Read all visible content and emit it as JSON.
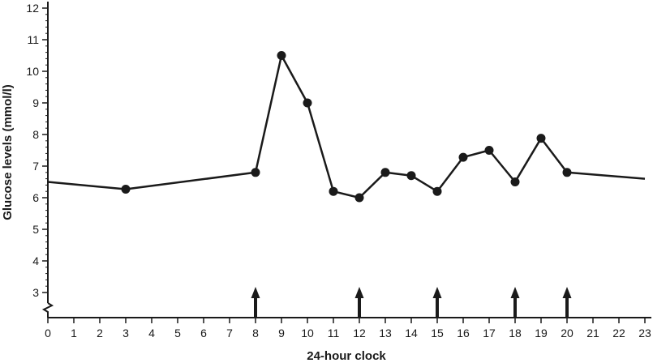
{
  "chart_data": {
    "type": "line",
    "xlabel": "24-hour clock",
    "ylabel": "Glucose levels (mmol/l)",
    "xlim": [
      0,
      23
    ],
    "ylim": [
      2.3,
      12.2
    ],
    "x_ticks": [
      0,
      1,
      2,
      3,
      4,
      5,
      6,
      7,
      8,
      9,
      10,
      11,
      12,
      13,
      14,
      15,
      16,
      17,
      18,
      19,
      20,
      21,
      22,
      23
    ],
    "y_ticks": [
      3,
      4,
      5,
      6,
      7,
      8,
      9,
      10,
      11,
      12
    ],
    "y_axis_break": true,
    "grid": false,
    "series": [
      {
        "x": [
          0,
          3,
          8,
          9,
          10,
          11,
          12,
          13,
          14,
          15,
          16,
          17,
          18,
          19,
          20,
          23
        ],
        "y": [
          6.5,
          6.27,
          6.8,
          10.5,
          9.0,
          6.2,
          6.0,
          6.8,
          6.7,
          6.2,
          7.28,
          7.5,
          6.5,
          7.88,
          6.8,
          6.6
        ],
        "markers": [
          false,
          true,
          true,
          true,
          true,
          true,
          true,
          true,
          true,
          true,
          true,
          true,
          true,
          true,
          true,
          false
        ]
      }
    ],
    "arrows_at": [
      8,
      12,
      15,
      18,
      20
    ],
    "line_color": "#1a1a1a"
  }
}
